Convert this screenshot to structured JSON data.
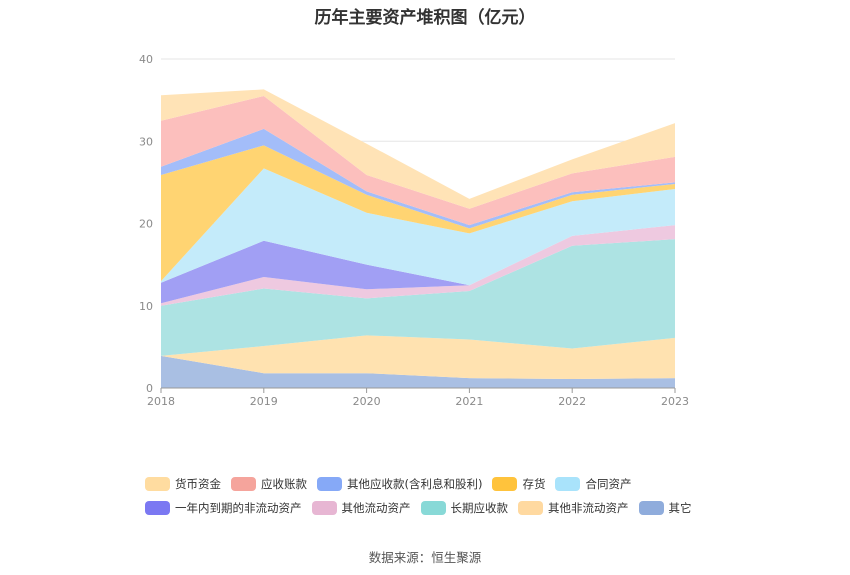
{
  "chart_data": {
    "type": "area",
    "stacked": true,
    "title": "历年主要资产堆积图（亿元）",
    "categories": [
      "2018",
      "2019",
      "2020",
      "2021",
      "2022",
      "2023"
    ],
    "ylim": [
      0,
      40
    ],
    "yticks": [
      0,
      10,
      20,
      30,
      40
    ],
    "grid": true,
    "legend_position": "bottom",
    "series": [
      {
        "name": "其它",
        "color": "#a9bfe3",
        "values": [
          3.9,
          1.8,
          1.8,
          1.2,
          1.1,
          1.2
        ]
      },
      {
        "name": "其他非流动资产",
        "color": "#ffe2b0",
        "values": [
          0.0,
          3.3,
          4.6,
          4.7,
          3.7,
          4.9
        ]
      },
      {
        "name": "长期应收款",
        "color": "#ade3e3",
        "values": [
          6.1,
          7.0,
          4.5,
          5.9,
          12.5,
          12.0
        ]
      },
      {
        "name": "其他流动资产",
        "color": "#eec9e0",
        "values": [
          0.3,
          1.4,
          1.1,
          0.7,
          1.2,
          1.7
        ]
      },
      {
        "name": "一年内到期的非流动资产",
        "color": "#a19ff4",
        "values": [
          2.5,
          4.4,
          3.0,
          0.0,
          0.0,
          0.0
        ]
      },
      {
        "name": "合同资产",
        "color": "#c4ebfa",
        "values": [
          0.2,
          8.8,
          6.3,
          6.3,
          4.2,
          4.4
        ]
      },
      {
        "name": "存货",
        "color": "#ffd472",
        "values": [
          12.9,
          2.8,
          2.2,
          0.6,
          0.8,
          0.6
        ]
      },
      {
        "name": "其他应收款(含利息和股利)",
        "color": "#a3bdf9",
        "values": [
          1.0,
          2.0,
          0.4,
          0.4,
          0.3,
          0.2
        ]
      },
      {
        "name": "应收账款",
        "color": "#fcbfbd",
        "values": [
          5.6,
          4.0,
          2.0,
          2.0,
          2.3,
          3.1
        ]
      },
      {
        "name": "货币资金",
        "color": "#ffe3b6",
        "values": [
          3.1,
          0.8,
          3.8,
          1.2,
          1.7,
          4.1
        ]
      }
    ]
  },
  "legend": {
    "row1": [
      {
        "label": "货币资金",
        "color": "#ffdca0"
      },
      {
        "label": "应收账款",
        "color": "#f5a49c"
      },
      {
        "label": "其他应收款(含利息和股利)",
        "color": "#86a9f7"
      },
      {
        "label": "存货",
        "color": "#ffc33c"
      },
      {
        "label": "合同资产",
        "color": "#a9e3fb"
      }
    ],
    "row2": [
      {
        "label": "一年内到期的非流动资产",
        "color": "#7b78f2"
      },
      {
        "label": "其他流动资产",
        "color": "#e7b6d3"
      },
      {
        "label": "长期应收款",
        "color": "#88d9d7"
      },
      {
        "label": "其他非流动资产",
        "color": "#ffd9a0"
      },
      {
        "label": "其它",
        "color": "#8facdc"
      }
    ]
  },
  "source": "数据来源：恒生聚源"
}
